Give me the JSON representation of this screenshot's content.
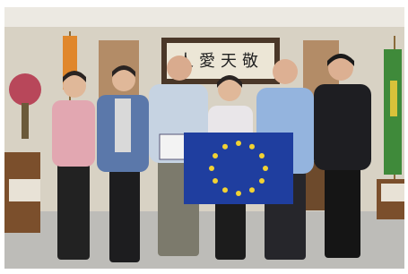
{
  "scene": {
    "calligraphy": "人愛天敬"
  }
}
